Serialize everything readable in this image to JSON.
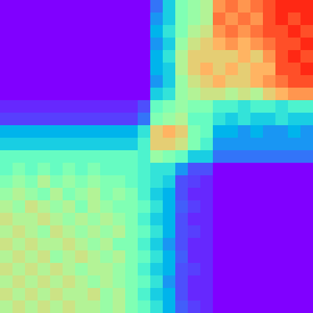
{
  "chart_data": {
    "type": "heatmap",
    "tick_labels": false,
    "color_range": [
      0,
      1
    ],
    "cells": [
      [
        0,
        0,
        0,
        0,
        0,
        0,
        0,
        0,
        0,
        0,
        0,
        0,
        0.15,
        0.3,
        0.5,
        0.55,
        0.6,
        0.8,
        0.85,
        0.8,
        0.85,
        0.9,
        0.95,
        0.95,
        0.95
      ],
      [
        0,
        0,
        0,
        0,
        0,
        0,
        0,
        0,
        0,
        0,
        0,
        0,
        0.2,
        0.3,
        0.5,
        0.55,
        0.6,
        0.85,
        0.8,
        0.85,
        0.8,
        0.9,
        0.95,
        0.9,
        0.95
      ],
      [
        0,
        0,
        0,
        0,
        0,
        0,
        0,
        0,
        0,
        0,
        0,
        0,
        0.25,
        0.35,
        0.5,
        0.6,
        0.65,
        0.8,
        0.85,
        0.8,
        0.85,
        0.9,
        0.9,
        0.95,
        0.9
      ],
      [
        0,
        0,
        0,
        0,
        0,
        0,
        0,
        0,
        0,
        0,
        0,
        0,
        0.2,
        0.3,
        0.55,
        0.65,
        0.7,
        0.75,
        0.8,
        0.75,
        0.8,
        0.85,
        0.9,
        0.9,
        0.95
      ],
      [
        0,
        0,
        0,
        0,
        0,
        0,
        0,
        0,
        0,
        0,
        0,
        0,
        0.25,
        0.35,
        0.6,
        0.7,
        0.7,
        0.7,
        0.7,
        0.75,
        0.7,
        0.8,
        0.9,
        0.95,
        0.9
      ],
      [
        0,
        0,
        0,
        0,
        0,
        0,
        0,
        0,
        0,
        0,
        0,
        0,
        0.25,
        0.3,
        0.6,
        0.7,
        0.75,
        0.7,
        0.75,
        0.7,
        0.75,
        0.75,
        0.9,
        0.9,
        0.95
      ],
      [
        0,
        0,
        0,
        0,
        0,
        0,
        0,
        0,
        0,
        0,
        0,
        0,
        0.2,
        0.3,
        0.55,
        0.65,
        0.7,
        0.75,
        0.7,
        0.7,
        0.75,
        0.8,
        0.85,
        0.9,
        0.9
      ],
      [
        0,
        0,
        0,
        0,
        0,
        0,
        0,
        0,
        0,
        0,
        0,
        0,
        0.3,
        0.35,
        0.55,
        0.6,
        0.65,
        0.65,
        0.6,
        0.65,
        0.6,
        0.7,
        0.75,
        0.8,
        0.8
      ],
      [
        0.05,
        0.05,
        0.05,
        0.05,
        0.05,
        0.05,
        0.05,
        0.05,
        0.05,
        0.05,
        0.05,
        0.1,
        0.45,
        0.5,
        0.55,
        0.5,
        0.5,
        0.4,
        0.4,
        0.35,
        0.4,
        0.4,
        0.35,
        0.4,
        0.4
      ],
      [
        0.08,
        0.08,
        0.08,
        0.08,
        0.08,
        0.08,
        0.08,
        0.08,
        0.08,
        0.08,
        0.08,
        0.15,
        0.5,
        0.55,
        0.6,
        0.45,
        0.45,
        0.35,
        0.3,
        0.35,
        0.3,
        0.3,
        0.35,
        0.3,
        0.3
      ],
      [
        0.25,
        0.25,
        0.25,
        0.25,
        0.25,
        0.25,
        0.25,
        0.25,
        0.25,
        0.25,
        0.25,
        0.35,
        0.7,
        0.75,
        0.7,
        0.5,
        0.45,
        0.25,
        0.25,
        0.2,
        0.25,
        0.2,
        0.2,
        0.25,
        0.2
      ],
      [
        0.3,
        0.3,
        0.3,
        0.3,
        0.3,
        0.3,
        0.3,
        0.3,
        0.3,
        0.3,
        0.3,
        0.4,
        0.7,
        0.7,
        0.65,
        0.5,
        0.4,
        0.2,
        0.2,
        0.2,
        0.2,
        0.2,
        0.2,
        0.2,
        0.2
      ],
      [
        0.45,
        0.45,
        0.45,
        0.45,
        0.45,
        0.45,
        0.45,
        0.45,
        0.45,
        0.45,
        0.45,
        0.4,
        0.55,
        0.5,
        0.45,
        0.3,
        0.3,
        0.15,
        0.15,
        0.15,
        0.15,
        0.15,
        0.15,
        0.15,
        0.15
      ],
      [
        0.45,
        0.5,
        0.45,
        0.5,
        0.45,
        0.5,
        0.45,
        0.5,
        0.45,
        0.45,
        0.45,
        0.4,
        0.35,
        0.35,
        0.2,
        0.1,
        0.1,
        0,
        0,
        0,
        0,
        0,
        0,
        0,
        0
      ],
      [
        0.5,
        0.55,
        0.5,
        0.6,
        0.5,
        0.55,
        0.5,
        0.55,
        0.5,
        0.5,
        0.45,
        0.4,
        0.35,
        0.3,
        0.1,
        0.08,
        0.05,
        0,
        0,
        0,
        0,
        0,
        0,
        0,
        0
      ],
      [
        0.55,
        0.6,
        0.55,
        0.5,
        0.6,
        0.5,
        0.55,
        0.6,
        0.5,
        0.55,
        0.5,
        0.4,
        0.3,
        0.25,
        0.1,
        0.05,
        0.05,
        0,
        0,
        0,
        0,
        0,
        0,
        0,
        0
      ],
      [
        0.6,
        0.55,
        0.65,
        0.6,
        0.55,
        0.6,
        0.5,
        0.6,
        0.55,
        0.5,
        0.5,
        0.45,
        0.35,
        0.25,
        0.12,
        0.08,
        0.05,
        0,
        0,
        0,
        0,
        0,
        0,
        0,
        0
      ],
      [
        0.65,
        0.6,
        0.6,
        0.65,
        0.6,
        0.55,
        0.6,
        0.55,
        0.6,
        0.55,
        0.5,
        0.4,
        0.3,
        0.25,
        0.1,
        0.05,
        0.05,
        0,
        0,
        0,
        0,
        0,
        0,
        0,
        0
      ],
      [
        0.6,
        0.65,
        0.6,
        0.55,
        0.65,
        0.6,
        0.55,
        0.6,
        0.55,
        0.6,
        0.5,
        0.45,
        0.35,
        0.25,
        0.1,
        0.08,
        0.05,
        0,
        0,
        0,
        0,
        0,
        0,
        0,
        0
      ],
      [
        0.65,
        0.6,
        0.65,
        0.6,
        0.6,
        0.65,
        0.6,
        0.55,
        0.6,
        0.5,
        0.5,
        0.4,
        0.3,
        0.2,
        0.1,
        0.05,
        0.05,
        0,
        0,
        0,
        0,
        0,
        0,
        0,
        0
      ],
      [
        0.6,
        0.65,
        0.6,
        0.65,
        0.55,
        0.6,
        0.65,
        0.6,
        0.55,
        0.6,
        0.5,
        0.45,
        0.35,
        0.25,
        0.12,
        0.05,
        0.05,
        0,
        0,
        0,
        0,
        0,
        0,
        0,
        0
      ],
      [
        0.65,
        0.6,
        0.65,
        0.6,
        0.65,
        0.6,
        0.55,
        0.6,
        0.6,
        0.55,
        0.5,
        0.4,
        0.3,
        0.25,
        0.1,
        0.08,
        0.05,
        0,
        0,
        0,
        0,
        0,
        0,
        0,
        0
      ],
      [
        0.6,
        0.65,
        0.6,
        0.65,
        0.6,
        0.65,
        0.6,
        0.55,
        0.6,
        0.55,
        0.5,
        0.45,
        0.35,
        0.2,
        0.1,
        0.05,
        0.05,
        0,
        0,
        0,
        0,
        0,
        0,
        0,
        0
      ],
      [
        0.65,
        0.6,
        0.65,
        0.6,
        0.65,
        0.6,
        0.6,
        0.65,
        0.55,
        0.6,
        0.5,
        0.4,
        0.3,
        0.25,
        0.1,
        0.05,
        0.05,
        0,
        0,
        0,
        0,
        0,
        0,
        0,
        0
      ],
      [
        0.6,
        0.65,
        0.6,
        0.65,
        0.6,
        0.65,
        0.6,
        0.6,
        0.55,
        0.6,
        0.5,
        0.45,
        0.35,
        0.25,
        0.12,
        0.08,
        0.05,
        0,
        0,
        0,
        0,
        0,
        0,
        0,
        0
      ]
    ]
  }
}
